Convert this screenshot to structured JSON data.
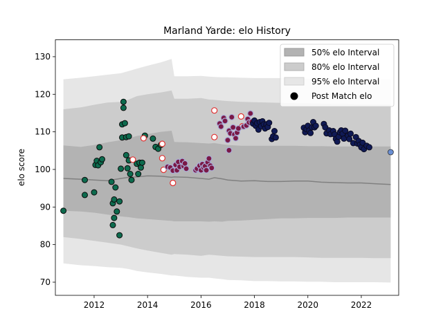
{
  "chart_data": {
    "type": "scatter",
    "title": "Marland Yarde: elo History",
    "xlabel": "",
    "ylabel": "elo score",
    "xlim": [
      2010.55,
      2023.4
    ],
    "ylim": [
      66.5,
      134.5
    ],
    "x_ticks": [
      2012,
      2014,
      2016,
      2018,
      2020,
      2022
    ],
    "y_ticks": [
      70,
      80,
      90,
      100,
      110,
      120,
      130
    ],
    "grid": false,
    "legend": {
      "placement": "top-right",
      "entries": [
        {
          "label": "50% elo Interval",
          "color": "#b3b3b3"
        },
        {
          "label": "80% elo Interval",
          "color": "#cccccc"
        },
        {
          "label": "95% elo Interval",
          "color": "#e6e6e6"
        },
        {
          "label": "Post Match elo",
          "color": "#000000"
        }
      ]
    },
    "colors": {
      "band50": "#b3b3b3",
      "band80": "#cccccc",
      "band95": "#e6e6e6",
      "mean_line": "#808080",
      "green": "#0d6b4e",
      "white_red": "#ffffff",
      "red_edge": "#e03030",
      "maroon": "#7a1846",
      "lavender_edge": "#a9acd8",
      "navy": "#101a55",
      "last": "#6a8fd4"
    },
    "intervals": {
      "x": [
        2010.85,
        2011.5,
        2012.0,
        2012.5,
        2013.0,
        2013.3,
        2013.6,
        2014.0,
        2014.5,
        2014.9,
        2015.0,
        2015.5,
        2016.0,
        2016.3,
        2016.5,
        2016.8,
        2017.0,
        2017.5,
        2018.0,
        2018.5,
        2019.0,
        2019.5,
        2020.0,
        2020.5,
        2021.0,
        2021.5,
        2022.0,
        2022.5,
        2023.1
      ],
      "mean": [
        97.6,
        97.4,
        97.2,
        97.0,
        97.6,
        97.9,
        98.0,
        98.3,
        98.2,
        97.9,
        98.0,
        97.9,
        97.6,
        97.4,
        97.8,
        97.5,
        97.2,
        96.9,
        97.0,
        96.8,
        96.8,
        96.9,
        96.9,
        96.6,
        96.5,
        96.4,
        96.4,
        96.2,
        96.0
      ],
      "p50_low": [
        89.0,
        88.8,
        88.5,
        88.0,
        87.5,
        87.3,
        87.0,
        86.8,
        86.5,
        86.3,
        86.2,
        86.2,
        86.2,
        86.1,
        86.2,
        86.1,
        86.3,
        86.4,
        86.6,
        86.8,
        87.0,
        87.0,
        87.1,
        87.1,
        87.1,
        87.2,
        87.2,
        87.2,
        87.2
      ],
      "p50_high": [
        106.4,
        106.0,
        106.5,
        107.2,
        107.8,
        108.3,
        108.9,
        109.4,
        110.0,
        110.3,
        107.3,
        107.2,
        107.0,
        106.9,
        107.0,
        106.7,
        106.5,
        106.3,
        106.3,
        106.3,
        106.3,
        106.3,
        106.2,
        106.2,
        106.1,
        106.1,
        106.1,
        106.1,
        106.1
      ],
      "p80_low": [
        82.0,
        81.5,
        81.0,
        80.5,
        80.0,
        79.5,
        79.0,
        78.4,
        77.8,
        77.3,
        77.5,
        77.3,
        77.0,
        77.3,
        77.2,
        77.0,
        76.9,
        76.8,
        76.7,
        76.7,
        76.7,
        76.7,
        76.6,
        76.5,
        76.5,
        76.5,
        76.5,
        76.4,
        76.4
      ],
      "p80_high": [
        116.0,
        116.5,
        117.2,
        117.8,
        118.0,
        118.6,
        119.5,
        120.0,
        120.5,
        121.0,
        118.8,
        118.8,
        119.0,
        118.6,
        118.5,
        118.3,
        118.2,
        118.0,
        117.9,
        117.8,
        117.7,
        117.6,
        117.6,
        117.5,
        117.4,
        117.4,
        117.3,
        117.3,
        117.3
      ],
      "p95_low": [
        75.0,
        74.5,
        74.3,
        74.0,
        73.8,
        73.5,
        73.0,
        72.6,
        72.2,
        71.8,
        71.8,
        71.4,
        71.2,
        71.2,
        71.0,
        70.8,
        70.6,
        70.5,
        70.3,
        70.3,
        70.2,
        70.2,
        70.1,
        70.1,
        70.0,
        70.0,
        70.0,
        70.0,
        69.9
      ],
      "p95_high": [
        124.0,
        124.4,
        124.8,
        125.2,
        125.6,
        126.2,
        126.8,
        127.6,
        128.5,
        129.4,
        124.8,
        124.8,
        124.9,
        124.7,
        124.6,
        124.5,
        124.5,
        124.4,
        124.3,
        124.3,
        124.3,
        124.2,
        124.2,
        124.1,
        124.1,
        124.1,
        124.1,
        124.0,
        124.0
      ]
    },
    "series": [
      {
        "marker": "green",
        "points": [
          [
            2010.85,
            89.0
          ],
          [
            2011.65,
            93.2
          ],
          [
            2011.65,
            97.2
          ],
          [
            2012.0,
            93.9
          ],
          [
            2012.05,
            101.2
          ],
          [
            2012.1,
            102.3
          ],
          [
            2012.15,
            101.1
          ],
          [
            2012.2,
            105.9
          ],
          [
            2012.25,
            101.9
          ],
          [
            2012.3,
            102.7
          ],
          [
            2012.65,
            96.7
          ],
          [
            2012.7,
            91.0
          ],
          [
            2012.7,
            85.2
          ],
          [
            2012.75,
            92.0
          ],
          [
            2012.75,
            87.1
          ],
          [
            2012.8,
            95.2
          ],
          [
            2012.85,
            88.8
          ],
          [
            2012.95,
            91.5
          ],
          [
            2012.95,
            82.5
          ],
          [
            2013.0,
            100.2
          ],
          [
            2013.05,
            108.5
          ],
          [
            2013.05,
            112.0
          ],
          [
            2013.1,
            118.0
          ],
          [
            2013.1,
            116.4
          ],
          [
            2013.15,
            112.3
          ],
          [
            2013.2,
            108.6
          ],
          [
            2013.2,
            103.8
          ],
          [
            2013.25,
            100.3
          ],
          [
            2013.3,
            108.8
          ],
          [
            2013.3,
            102.4
          ],
          [
            2013.35,
            98.8
          ],
          [
            2013.4,
            97.2
          ],
          [
            2013.6,
            101.5
          ],
          [
            2013.65,
            98.8
          ],
          [
            2013.7,
            101.8
          ],
          [
            2013.75,
            100.5
          ],
          [
            2013.8,
            101.8
          ],
          [
            2013.9,
            109.0
          ],
          [
            2014.2,
            108.2
          ],
          [
            2014.3,
            106.0
          ],
          [
            2014.4,
            105.5
          ],
          [
            2014.5,
            106.5
          ]
        ]
      },
      {
        "marker": "white_red",
        "points": [
          [
            2013.45,
            102.6
          ],
          [
            2013.85,
            108.3
          ],
          [
            2014.55,
            106.8
          ],
          [
            2014.55,
            103.0
          ],
          [
            2014.6,
            99.9
          ],
          [
            2014.95,
            96.4
          ],
          [
            2016.5,
            115.7
          ],
          [
            2016.5,
            108.6
          ],
          [
            2017.5,
            114.1
          ],
          [
            2017.55,
            111.5
          ]
        ]
      },
      {
        "marker": "maroon",
        "points": [
          [
            2014.75,
            100.7
          ],
          [
            2014.85,
            100.5
          ],
          [
            2014.95,
            99.7
          ],
          [
            2015.05,
            101.2
          ],
          [
            2015.1,
            99.8
          ],
          [
            2015.15,
            102.0
          ],
          [
            2015.2,
            100.7
          ],
          [
            2015.3,
            102.2
          ],
          [
            2015.35,
            100.9
          ],
          [
            2015.4,
            101.6
          ],
          [
            2015.45,
            100.2
          ],
          [
            2015.8,
            99.8
          ],
          [
            2015.85,
            100.2
          ],
          [
            2015.95,
            101.0
          ],
          [
            2016.0,
            99.8
          ],
          [
            2016.05,
            101.4
          ],
          [
            2016.1,
            100.5
          ],
          [
            2016.15,
            100.9
          ],
          [
            2016.2,
            99.8
          ],
          [
            2016.25,
            101.9
          ],
          [
            2016.3,
            102.9
          ],
          [
            2016.35,
            101.0
          ],
          [
            2016.4,
            100.4
          ],
          [
            2016.7,
            112.2
          ],
          [
            2016.75,
            111.4
          ],
          [
            2016.85,
            113.7
          ],
          [
            2016.9,
            112.9
          ],
          [
            2017.0,
            107.8
          ],
          [
            2017.05,
            105.1
          ],
          [
            2017.05,
            110.3
          ],
          [
            2017.1,
            109.6
          ],
          [
            2017.15,
            113.9
          ],
          [
            2017.2,
            111.2
          ],
          [
            2017.25,
            109.3
          ],
          [
            2017.3,
            108.3
          ],
          [
            2017.35,
            109.8
          ],
          [
            2017.4,
            110.9
          ],
          [
            2017.6,
            111.4
          ],
          [
            2017.7,
            111.7
          ],
          [
            2017.75,
            113.4
          ],
          [
            2017.8,
            112.5
          ],
          [
            2017.85,
            114.9
          ],
          [
            2017.9,
            112.7
          ]
        ]
      },
      {
        "marker": "navy",
        "points": [
          [
            2017.95,
            112.2
          ],
          [
            2018.0,
            113.0
          ],
          [
            2018.05,
            111.6
          ],
          [
            2018.1,
            112.3
          ],
          [
            2018.15,
            110.6
          ],
          [
            2018.2,
            112.6
          ],
          [
            2018.25,
            111.5
          ],
          [
            2018.3,
            112.8
          ],
          [
            2018.35,
            112.0
          ],
          [
            2018.4,
            110.9
          ],
          [
            2018.45,
            112.0
          ],
          [
            2018.5,
            111.3
          ],
          [
            2018.55,
            112.4
          ],
          [
            2018.65,
            108.1
          ],
          [
            2018.7,
            108.8
          ],
          [
            2018.75,
            110.2
          ],
          [
            2018.8,
            108.5
          ],
          [
            2019.85,
            111.1
          ],
          [
            2019.9,
            109.9
          ],
          [
            2019.95,
            110.7
          ],
          [
            2020.0,
            111.6
          ],
          [
            2020.05,
            110.4
          ],
          [
            2020.1,
            109.7
          ],
          [
            2020.15,
            111.2
          ],
          [
            2020.2,
            112.6
          ],
          [
            2020.25,
            111.2
          ],
          [
            2020.3,
            111.6
          ],
          [
            2020.6,
            112.1
          ],
          [
            2020.65,
            111.2
          ],
          [
            2020.7,
            109.6
          ],
          [
            2020.8,
            110.4
          ],
          [
            2020.85,
            109.4
          ],
          [
            2020.95,
            110.2
          ],
          [
            2021.0,
            109.3
          ],
          [
            2021.05,
            108.1
          ],
          [
            2021.1,
            107.4
          ],
          [
            2021.15,
            108.7
          ],
          [
            2021.2,
            109.9
          ],
          [
            2021.25,
            110.4
          ],
          [
            2021.3,
            109.5
          ],
          [
            2021.35,
            108.2
          ],
          [
            2021.4,
            110.3
          ],
          [
            2021.5,
            109.0
          ],
          [
            2021.55,
            108.1
          ],
          [
            2021.6,
            109.5
          ],
          [
            2021.7,
            107.0
          ],
          [
            2021.8,
            108.6
          ],
          [
            2021.85,
            106.9
          ],
          [
            2021.9,
            107.6
          ],
          [
            2021.95,
            106.6
          ],
          [
            2022.0,
            105.9
          ],
          [
            2022.05,
            107.1
          ],
          [
            2022.1,
            105.4
          ],
          [
            2022.2,
            106.3
          ],
          [
            2022.3,
            105.9
          ]
        ]
      },
      {
        "marker": "last",
        "points": [
          [
            2023.1,
            104.6
          ]
        ]
      }
    ]
  }
}
